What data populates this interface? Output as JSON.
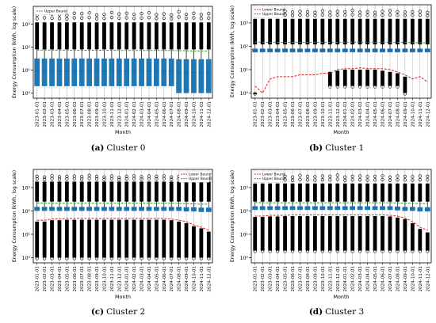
{
  "months": [
    "2023-01-01",
    "2023-02-01",
    "2023-03-01",
    "2023-04-01",
    "2023-05-01",
    "2023-06-01",
    "2023-07-01",
    "2023-08-01",
    "2023-09-01",
    "2023-10-01",
    "2023-11-01",
    "2023-12-01",
    "2024-01-01",
    "2024-02-01",
    "2024-03-01",
    "2024-04-01",
    "2024-05-01",
    "2024-06-01",
    "2024-07-01",
    "2024-08-01",
    "2024-09-01",
    "2024-10-01",
    "2024-11-01",
    "2024-12-01"
  ],
  "colors": {
    "box": "#1f77b4",
    "lower_bound": "#d62728",
    "upper_bound": "#2ca02c",
    "grid": "#b0b0b0"
  },
  "chart_data": [
    {
      "type": "box",
      "caption_label": "(a)",
      "caption_text": "Cluster 0",
      "xlabel": "Month",
      "ylabel": "Energy Consumption (kWh, log scale)",
      "yscale": "log",
      "ylim": [
        0.6,
        6000
      ],
      "yticks": [
        1,
        10,
        100,
        1000
      ],
      "ytick_labels": [
        "10⁰",
        "10¹",
        "10²",
        "10³"
      ],
      "grid": true,
      "legend": {
        "position": "top-left",
        "entries": [
          {
            "label": "Upper Bound",
            "style": "upper_bound"
          }
        ]
      },
      "boxes": {
        "q1": [
          2,
          2,
          2,
          2,
          2,
          2,
          2,
          2,
          2,
          2,
          2,
          2,
          2,
          2,
          2,
          2,
          2,
          2,
          2,
          1,
          1,
          1,
          1,
          1
        ],
        "q3": [
          32,
          32,
          32,
          32,
          32,
          32,
          32,
          32,
          32,
          32,
          32,
          32,
          32,
          32,
          32,
          32,
          32,
          32,
          32,
          30,
          30,
          30,
          30,
          30
        ],
        "median": [
          9,
          9,
          9,
          9,
          9,
          9,
          9,
          9,
          9,
          9,
          9,
          9,
          9,
          9,
          9,
          9,
          9,
          9,
          9,
          8,
          8,
          8,
          8,
          8
        ]
      },
      "outlier_range": [
        80,
        1200
      ],
      "outlier_max": [
        2500,
        3000,
        2800,
        2600,
        2400,
        3000,
        2900,
        3100,
        2500,
        2700,
        3200,
        2800,
        3000,
        2700,
        2900,
        3100,
        2600,
        2800,
        2500,
        3500,
        2700,
        3000,
        2600,
        2900
      ],
      "upper_bound": [
        75,
        75,
        74,
        74,
        74,
        73,
        73,
        73,
        73,
        73,
        73,
        72,
        72,
        72,
        72,
        72,
        72,
        72,
        72,
        70,
        70,
        68,
        68,
        68
      ],
      "lower_bound": null
    },
    {
      "type": "box",
      "caption_label": "(b)",
      "caption_text": "Cluster 1",
      "xlabel": "Month",
      "ylabel": "Energy Consumption (kWh, log scale)",
      "yscale": "log",
      "ylim": [
        0.6,
        6000
      ],
      "yticks": [
        1,
        10,
        100,
        1000
      ],
      "ytick_labels": [
        "10⁰",
        "10¹",
        "10²",
        "10³"
      ],
      "grid": true,
      "legend": {
        "position": "top-left",
        "entries": [
          {
            "label": "Lower Bound",
            "style": "lower_bound"
          },
          {
            "label": "Upper Bound",
            "style": "upper_bound"
          }
        ]
      },
      "boxes": {
        "q1": [
          55,
          55,
          55,
          55,
          55,
          55,
          55,
          55,
          55,
          55,
          55,
          55,
          55,
          55,
          55,
          55,
          55,
          55,
          55,
          55,
          55,
          55,
          55,
          55
        ],
        "q3": [
          80,
          80,
          80,
          80,
          80,
          80,
          80,
          80,
          80,
          80,
          80,
          80,
          80,
          80,
          80,
          80,
          80,
          80,
          80,
          80,
          80,
          80,
          80,
          80
        ],
        "median": [
          68,
          68,
          68,
          68,
          68,
          68,
          68,
          68,
          68,
          68,
          68,
          68,
          68,
          68,
          68,
          68,
          68,
          68,
          68,
          68,
          68,
          68,
          68,
          68
        ]
      },
      "outlier_range": [
        120,
        1500
      ],
      "outlier_max": [
        3000,
        3500,
        2800,
        3000,
        3200,
        2900,
        3100,
        3000,
        2800,
        3300,
        2900,
        3100,
        3000,
        3400,
        2900,
        3000,
        2800,
        3100,
        3300,
        3000,
        2900,
        3000,
        3100,
        2800
      ],
      "upper_bound": [
        150,
        150,
        148,
        148,
        148,
        148,
        148,
        148,
        148,
        148,
        148,
        148,
        148,
        148,
        148,
        148,
        148,
        148,
        148,
        148,
        145,
        145,
        140,
        140
      ],
      "lower_bound": [
        2,
        1,
        4,
        5,
        5,
        5,
        6,
        6,
        6,
        7,
        7,
        10,
        11,
        11,
        12,
        11,
        11,
        11,
        10,
        8,
        6,
        4,
        5,
        3
      ],
      "lower_outliers": [
        {
          "from": 1,
          "to": 1
        },
        null,
        null,
        null,
        null,
        null,
        null,
        null,
        null,
        null,
        {
          "from": 2,
          "to": 8
        },
        {
          "from": 2,
          "to": 9
        },
        {
          "from": 2,
          "to": 10
        },
        {
          "from": 2,
          "to": 10
        },
        {
          "from": 2,
          "to": 10
        },
        {
          "from": 2,
          "to": 10
        },
        {
          "from": 2,
          "to": 10
        },
        {
          "from": 2,
          "to": 9
        },
        {
          "from": 2,
          "to": 8
        },
        {
          "from": 2,
          "to": 7
        },
        {
          "from": 1,
          "to": 5
        },
        null,
        null,
        null
      ]
    },
    {
      "type": "box",
      "caption_label": "(c)",
      "caption_text": "Cluster 2",
      "xlabel": "Month",
      "ylabel": "Energy Consumption (kWh, log scale)",
      "yscale": "log",
      "ylim": [
        0.6,
        6000
      ],
      "yticks": [
        1,
        10,
        100,
        1000
      ],
      "ytick_labels": [
        "10⁰",
        "10¹",
        "10²",
        "10³"
      ],
      "grid": true,
      "legend": {
        "position": "top-right",
        "entries": [
          {
            "label": "Lower Bound",
            "style": "lower_bound"
          },
          {
            "label": "Upper Bound",
            "style": "upper_bound"
          }
        ]
      },
      "boxes": {
        "q1": [
          100,
          100,
          100,
          100,
          100,
          100,
          100,
          100,
          100,
          100,
          100,
          100,
          100,
          100,
          100,
          100,
          100,
          100,
          100,
          100,
          95,
          95,
          90,
          90
        ],
        "q3": [
          150,
          150,
          150,
          150,
          150,
          150,
          150,
          150,
          150,
          150,
          150,
          150,
          150,
          150,
          150,
          150,
          150,
          150,
          150,
          150,
          145,
          145,
          140,
          140
        ],
        "median": [
          125,
          125,
          125,
          125,
          125,
          125,
          125,
          125,
          125,
          125,
          125,
          125,
          125,
          125,
          125,
          125,
          125,
          125,
          125,
          125,
          120,
          120,
          115,
          115
        ]
      },
      "outlier_range": [
        250,
        1800
      ],
      "outlier_max": [
        3000,
        2800,
        3200,
        2900,
        3000,
        3100,
        2900,
        3300,
        3000,
        2800,
        3100,
        2700,
        3000,
        3200,
        2900,
        3100,
        3000,
        3200,
        2800,
        3000,
        3100,
        2900,
        3000,
        2800
      ],
      "upper_bound": [
        220,
        220,
        215,
        215,
        215,
        215,
        215,
        215,
        215,
        215,
        215,
        215,
        215,
        215,
        215,
        215,
        215,
        215,
        215,
        210,
        205,
        200,
        195,
        195
      ],
      "lower_bound": [
        40,
        40,
        45,
        45,
        48,
        48,
        48,
        48,
        48,
        48,
        48,
        48,
        48,
        48,
        48,
        48,
        48,
        48,
        45,
        40,
        35,
        25,
        20,
        15
      ],
      "lower_outliers": [
        {
          "from": 1,
          "to": 35
        },
        {
          "from": 1,
          "to": 35
        },
        {
          "from": 1,
          "to": 40
        },
        {
          "from": 1,
          "to": 40
        },
        {
          "from": 1,
          "to": 42
        },
        {
          "from": 1,
          "to": 42
        },
        {
          "from": 1,
          "to": 42
        },
        {
          "from": 1,
          "to": 42
        },
        {
          "from": 1,
          "to": 42
        },
        {
          "from": 1,
          "to": 42
        },
        {
          "from": 1,
          "to": 42
        },
        {
          "from": 1,
          "to": 42
        },
        {
          "from": 1,
          "to": 42
        },
        {
          "from": 1,
          "to": 42
        },
        {
          "from": 1,
          "to": 42
        },
        {
          "from": 1,
          "to": 42
        },
        {
          "from": 1,
          "to": 42
        },
        {
          "from": 1,
          "to": 42
        },
        {
          "from": 1,
          "to": 40
        },
        {
          "from": 1,
          "to": 35
        },
        {
          "from": 1,
          "to": 30
        },
        {
          "from": 1,
          "to": 22
        },
        {
          "from": 1,
          "to": 18
        },
        {
          "from": 1,
          "to": 13
        }
      ]
    },
    {
      "type": "box",
      "caption_label": "(d)",
      "caption_text": "Cluster 3",
      "xlabel": "Month",
      "ylabel": "Energy Consumption (kWh, log scale)",
      "yscale": "log",
      "ylim": [
        0.6,
        6000
      ],
      "yticks": [
        1,
        10,
        100,
        1000
      ],
      "ytick_labels": [
        "10⁰",
        "10¹",
        "10²",
        "10³"
      ],
      "grid": true,
      "legend": {
        "position": "top-left",
        "entries": [
          {
            "label": "Lower Bound",
            "style": "lower_bound"
          },
          {
            "label": "Upper Bound",
            "style": "upper_bound"
          }
        ]
      },
      "boxes": {
        "q1": [
          110,
          110,
          110,
          110,
          110,
          110,
          110,
          110,
          110,
          110,
          110,
          110,
          110,
          110,
          110,
          110,
          110,
          110,
          110,
          105,
          100,
          100,
          95,
          95
        ],
        "q3": [
          160,
          160,
          160,
          160,
          160,
          160,
          160,
          160,
          160,
          160,
          160,
          160,
          160,
          160,
          160,
          160,
          160,
          160,
          160,
          155,
          150,
          150,
          145,
          145
        ],
        "median": [
          135,
          135,
          135,
          135,
          135,
          135,
          135,
          135,
          135,
          135,
          135,
          135,
          135,
          135,
          135,
          135,
          135,
          135,
          135,
          130,
          125,
          125,
          120,
          120
        ]
      },
      "outlier_range": [
        250,
        1500
      ],
      "outlier_max": [
        3000,
        3200,
        2900,
        3100,
        3000,
        2800,
        3300,
        3000,
        2900,
        3100,
        3000,
        3400,
        2800,
        3000,
        3100,
        2900,
        3000,
        3200,
        2800,
        3100,
        3000,
        2900,
        3100,
        3000
      ],
      "upper_bound": [
        230,
        225,
        225,
        225,
        225,
        225,
        225,
        225,
        225,
        225,
        225,
        225,
        225,
        225,
        225,
        225,
        225,
        225,
        225,
        220,
        215,
        210,
        205,
        205
      ],
      "lower_bound": [
        60,
        60,
        65,
        65,
        65,
        68,
        68,
        68,
        68,
        68,
        68,
        68,
        68,
        68,
        68,
        68,
        68,
        68,
        65,
        60,
        50,
        35,
        20,
        15
      ],
      "lower_outliers": [
        {
          "from": 2,
          "to": 55
        },
        {
          "from": 2,
          "to": 55
        },
        {
          "from": 2,
          "to": 58
        },
        {
          "from": 2,
          "to": 58
        },
        {
          "from": 2,
          "to": 60
        },
        {
          "from": 2,
          "to": 60
        },
        {
          "from": 2,
          "to": 60
        },
        {
          "from": 2,
          "to": 60
        },
        {
          "from": 2,
          "to": 60
        },
        {
          "from": 2,
          "to": 60
        },
        {
          "from": 2,
          "to": 60
        },
        {
          "from": 2,
          "to": 60
        },
        {
          "from": 2,
          "to": 60
        },
        {
          "from": 2,
          "to": 60
        },
        {
          "from": 2,
          "to": 60
        },
        {
          "from": 2,
          "to": 60
        },
        {
          "from": 2,
          "to": 60
        },
        {
          "from": 2,
          "to": 60
        },
        {
          "from": 2,
          "to": 58
        },
        {
          "from": 2,
          "to": 52
        },
        {
          "from": 2,
          "to": 45
        },
        {
          "from": 2,
          "to": 30
        },
        {
          "from": 2,
          "to": 17
        },
        {
          "from": 2,
          "to": 12
        }
      ]
    }
  ]
}
